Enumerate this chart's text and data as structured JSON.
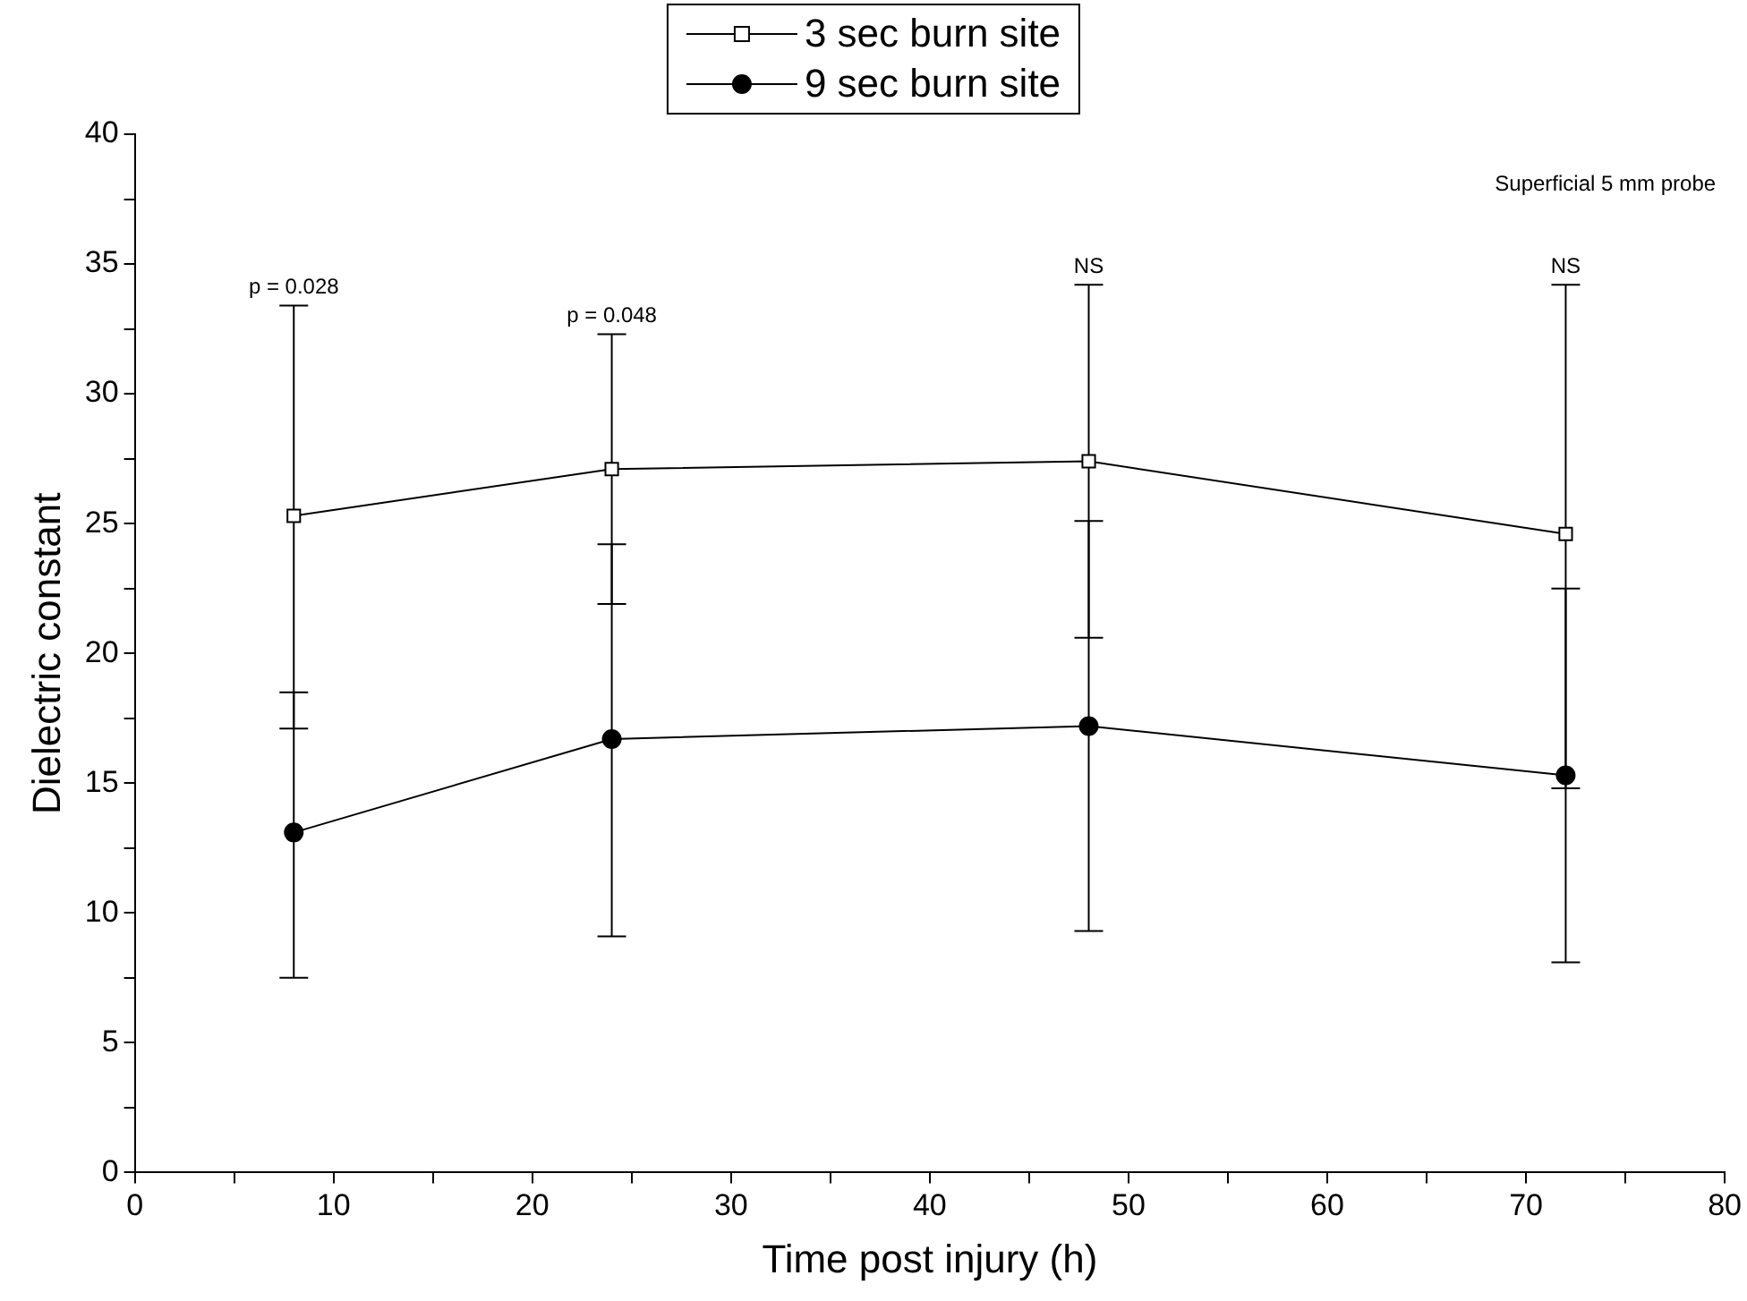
{
  "chart_data": {
    "type": "line",
    "xlabel": "Time post injury (h)",
    "ylabel": "Dielectric constant",
    "x": [
      8,
      24,
      48,
      72
    ],
    "xlim": [
      0,
      80
    ],
    "xticks": [
      0,
      {
        "value": 5,
        "label": null
      },
      10,
      {
        "value": 15,
        "label": null
      },
      20,
      {
        "value": 25,
        "label": null
      },
      30,
      {
        "value": 35,
        "label": null
      },
      40,
      {
        "value": 45,
        "label": null
      },
      50,
      {
        "value": 55,
        "label": null
      },
      60,
      {
        "value": 65,
        "label": null
      },
      70,
      {
        "value": 75,
        "label": null
      },
      80
    ],
    "ylim": [
      0,
      40
    ],
    "yticks": [
      0,
      {
        "value": 2.5,
        "label": null
      },
      5,
      {
        "value": 7.5,
        "label": null
      },
      10,
      {
        "value": 12.5,
        "label": null
      },
      15,
      {
        "value": 17.5,
        "label": null
      },
      20,
      {
        "value": 22.5,
        "label": null
      },
      25,
      {
        "value": 27.5,
        "label": null
      },
      30,
      {
        "value": 32.5,
        "label": null
      },
      35,
      {
        "value": 37.5,
        "label": null
      },
      40
    ],
    "grid": false,
    "legend": "top",
    "line_style": "solid",
    "series": [
      {
        "name": "3 sec burn site",
        "color": "#000000",
        "marker": "square",
        "values": [
          25.3,
          27.1,
          27.4,
          24.6
        ],
        "errors": [
          [
            17.1,
            33.4
          ],
          [
            21.9,
            32.3
          ],
          [
            20.6,
            34.2
          ],
          [
            14.8,
            34.2
          ]
        ]
      },
      {
        "name": "9 sec burn site",
        "color": "#000000",
        "marker": "circle",
        "values": [
          13.1,
          16.7,
          17.2,
          15.3
        ],
        "errors": [
          [
            7.5,
            18.5
          ],
          [
            9.1,
            24.2
          ],
          [
            9.3,
            25.1
          ],
          [
            8.1,
            22.5
          ]
        ]
      }
    ],
    "annotations": [
      {
        "text": "p = 0.028",
        "x": 8,
        "y": 33.4
      },
      {
        "text": "p = 0.048",
        "x": 24,
        "y": 32.3
      },
      {
        "text": "NS",
        "x": 48,
        "y": 34.2
      },
      {
        "text": "NS",
        "x": 72,
        "y": 34.2
      },
      "Superficial 5 mm probe"
    ]
  }
}
